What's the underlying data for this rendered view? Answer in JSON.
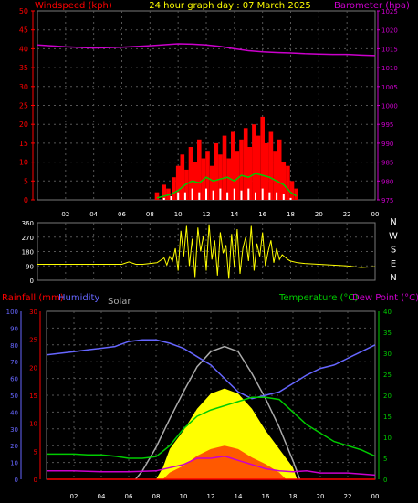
{
  "chart_data": [
    {
      "type": "line",
      "title": "24 hour graph day : 07 March 2025",
      "ylabel_left": "Windspeed (kph)",
      "ylabel_right": "Barometer (hpa)",
      "y_left_ticks": [
        "0",
        "5",
        "10",
        "15",
        "20",
        "25",
        "30",
        "35",
        "40",
        "45",
        "50"
      ],
      "y_right_ticks": [
        "975",
        "980",
        "985",
        "990",
        "995",
        "1000",
        "1005",
        "1010",
        "1015",
        "1020",
        "1025"
      ],
      "x_ticks": [
        "02",
        "04",
        "06",
        "08",
        "10",
        "12",
        "14",
        "16",
        "18",
        "20",
        "22",
        "00"
      ],
      "ylim_left": [
        0,
        50
      ],
      "ylim_right": [
        975,
        1025
      ],
      "grid": true,
      "colors": {
        "gust": "#ff0000",
        "wind_avg": "#00cc00",
        "wind_speed": "#ffffff",
        "barometer": "#cc00cc",
        "title": "#ffff00",
        "left_axis": "#ff0000",
        "right_axis": "#cc00cc"
      },
      "series": [
        {
          "name": "Barometer",
          "hours": [
            0,
            2,
            4,
            6,
            8,
            10,
            11,
            12,
            13,
            14,
            15,
            16,
            17,
            18,
            19,
            20,
            21,
            22,
            23,
            24
          ],
          "values": [
            1016,
            1015.5,
            1015.2,
            1015.4,
            1015.8,
            1016.3,
            1016.2,
            1016,
            1015.6,
            1015,
            1014.5,
            1014.2,
            1014,
            1013.9,
            1013.7,
            1013.6,
            1013.5,
            1013.5,
            1013.3,
            1013.2
          ]
        },
        {
          "name": "Wind Gust",
          "hours": [
            8.5,
            9.0,
            9.3,
            9.7,
            10.0,
            10.3,
            10.6,
            10.9,
            11.2,
            11.5,
            11.8,
            12.1,
            12.4,
            12.7,
            13.0,
            13.3,
            13.6,
            13.9,
            14.2,
            14.5,
            14.8,
            15.1,
            15.4,
            15.7,
            16.0,
            16.3,
            16.6,
            16.9,
            17.2,
            17.5,
            17.8,
            18.1,
            18.4
          ],
          "values": [
            2,
            4,
            3,
            6,
            9,
            12,
            8,
            14,
            10,
            16,
            11,
            13,
            9,
            15,
            12,
            17,
            11,
            18,
            13,
            16,
            19,
            14,
            20,
            17,
            22,
            15,
            18,
            13,
            16,
            10,
            9,
            5,
            3
          ]
        },
        {
          "name": "Average Wind",
          "hours": [
            8.5,
            9,
            9.5,
            10,
            10.5,
            11,
            11.5,
            12,
            12.5,
            13,
            13.5,
            14,
            14.5,
            15,
            15.5,
            16,
            16.5,
            17,
            17.5,
            18,
            18.4
          ],
          "values": [
            0.5,
            1,
            1.5,
            2.5,
            4,
            5,
            4.5,
            6,
            5,
            5.5,
            6,
            5,
            6.5,
            6,
            7,
            6.5,
            6,
            5,
            4,
            2,
            1
          ]
        },
        {
          "name": "Wind Speed",
          "hours": [
            9,
            9.5,
            10,
            10.5,
            11,
            11.5,
            12,
            12.5,
            13,
            13.5,
            14,
            14.5,
            15,
            15.5,
            16,
            16.5,
            17,
            17.5,
            18
          ],
          "values": [
            0.5,
            1,
            2,
            2,
            3,
            2,
            3,
            2.5,
            3,
            2,
            3,
            2.5,
            3,
            2,
            3,
            2,
            2,
            1.5,
            0.5
          ]
        }
      ]
    },
    {
      "type": "scatter",
      "title": "",
      "y_left_ticks": [
        "0",
        "90",
        "180",
        "270",
        "360"
      ],
      "y_right_labels": [
        "N",
        "W",
        "S",
        "E",
        "N"
      ],
      "x_ticks": [
        "02",
        "04",
        "06",
        "08",
        "10",
        "12",
        "14",
        "16",
        "18",
        "20",
        "22",
        "00"
      ],
      "ylim": [
        0,
        360
      ],
      "grid": true,
      "colors": {
        "direction": "#ffff00",
        "axis": "#ffffff"
      },
      "series": [
        {
          "name": "Wind Direction",
          "hours": [
            0,
            2,
            4,
            6,
            6.5,
            7,
            7.5,
            8,
            8.5,
            9,
            9.2,
            9.4,
            9.6,
            9.8,
            10,
            10.2,
            10.4,
            10.6,
            10.8,
            11,
            11.2,
            11.4,
            11.6,
            11.8,
            12,
            12.2,
            12.4,
            12.6,
            12.8,
            13,
            13.2,
            13.4,
            13.6,
            13.8,
            14,
            14.2,
            14.4,
            14.6,
            14.8,
            15,
            15.2,
            15.4,
            15.6,
            15.8,
            16,
            16.2,
            16.4,
            16.6,
            16.8,
            17,
            17.2,
            17.4,
            17.6,
            17.8,
            18,
            18.5,
            19,
            20,
            21,
            22,
            23,
            24
          ],
          "values": [
            100,
            100,
            100,
            100,
            115,
            100,
            100,
            105,
            110,
            140,
            95,
            150,
            120,
            200,
            60,
            310,
            150,
            340,
            90,
            260,
            20,
            330,
            180,
            280,
            60,
            350,
            130,
            250,
            30,
            300,
            170,
            220,
            10,
            290,
            80,
            320,
            40,
            200,
            270,
            120,
            340,
            60,
            230,
            150,
            300,
            90,
            180,
            250,
            110,
            200,
            130,
            160,
            145,
            130,
            120,
            110,
            105,
            100,
            95,
            90,
            80,
            85
          ]
        }
      ]
    },
    {
      "type": "line",
      "title": "",
      "labels": {
        "rainfall": "Rainfall (mm)",
        "humidity": "Humidity",
        "solar": "Solar",
        "temperature": "Temperature (°C)",
        "dewpoint": "Dew Point (°C)"
      },
      "humidity_ticks": [
        "0",
        "10",
        "20",
        "30",
        "40",
        "50",
        "60",
        "70",
        "80",
        "90",
        "100"
      ],
      "rainfall_ticks": [
        "0",
        "5",
        "10",
        "15",
        "20",
        "25",
        "30"
      ],
      "temperature_ticks": [
        "0",
        "5",
        "10",
        "15",
        "20",
        "25",
        "30",
        "35",
        "40"
      ],
      "x_ticks": [
        "02",
        "04",
        "06",
        "08",
        "10",
        "12",
        "14",
        "16",
        "18",
        "20",
        "22",
        "00"
      ],
      "ylim_humidity": [
        0,
        100
      ],
      "ylim_temperature": [
        0,
        40
      ],
      "grid": true,
      "colors": {
        "humidity": "#6666ff",
        "rainfall": "#ff0000",
        "solar": "#aaaaaa",
        "temperature": "#00cc00",
        "dewpoint": "#cc00cc",
        "radiation_fill": "#ffff00",
        "uv_fill": "#ff2200"
      },
      "series": [
        {
          "name": "Humidity",
          "hours": [
            0,
            1,
            2,
            3,
            4,
            5,
            6,
            7,
            8,
            9,
            10,
            11,
            12,
            13,
            14,
            15,
            16,
            17,
            18,
            19,
            20,
            21,
            22,
            23,
            24
          ],
          "values": [
            74,
            75,
            76,
            77,
            78,
            79,
            82,
            83,
            83,
            81,
            78,
            73,
            68,
            60,
            52,
            48,
            50,
            52,
            57,
            62,
            66,
            68,
            72,
            76,
            80
          ]
        },
        {
          "name": "Temperature",
          "hours": [
            0,
            1,
            2,
            3,
            4,
            5,
            6,
            7,
            8,
            9,
            10,
            11,
            12,
            13,
            14,
            15,
            16,
            17,
            18,
            19,
            20,
            21,
            22,
            23,
            24
          ],
          "values": [
            6,
            6,
            6,
            5.8,
            5.8,
            5.5,
            5,
            5,
            5.4,
            8,
            12,
            15,
            16.5,
            17.5,
            18.5,
            19.5,
            19.5,
            19,
            16,
            13,
            11,
            9,
            8,
            7,
            5.5
          ]
        },
        {
          "name": "Dew Point",
          "hours": [
            0,
            2,
            4,
            6,
            8,
            10,
            11,
            12,
            13,
            14,
            15,
            16,
            17,
            18,
            19,
            20,
            22,
            24
          ],
          "values": [
            2,
            2,
            1.8,
            1.8,
            2,
            3.5,
            5,
            5,
            5.5,
            4.5,
            3.5,
            2.5,
            2,
            1.8,
            2,
            1.5,
            1.5,
            1
          ]
        },
        {
          "name": "Solar",
          "hours": [
            6.5,
            7,
            8,
            9,
            10,
            11,
            12,
            13,
            14,
            15,
            16,
            17,
            18,
            18.5
          ],
          "values": [
            0,
            5,
            19,
            36,
            52,
            67,
            76,
            79,
            76,
            63,
            48,
            31,
            11,
            0
          ]
        },
        {
          "name": "Radiation",
          "hours": [
            8,
            8.5,
            9,
            10,
            11,
            12,
            13,
            14,
            15,
            16,
            17,
            18,
            18.3
          ],
          "values": [
            0,
            7,
            18,
            29,
            42,
            51,
            54,
            51,
            42,
            29,
            18,
            7,
            0
          ]
        },
        {
          "name": "UV",
          "hours": [
            8.5,
            9,
            10,
            11,
            12,
            13,
            14,
            15,
            16,
            17,
            17.5
          ],
          "values": [
            0,
            4,
            8,
            14,
            18,
            20,
            18,
            13,
            9,
            4,
            0
          ]
        },
        {
          "name": "Rainfall",
          "hours": [
            0,
            24
          ],
          "values": [
            0,
            0
          ]
        }
      ]
    }
  ]
}
